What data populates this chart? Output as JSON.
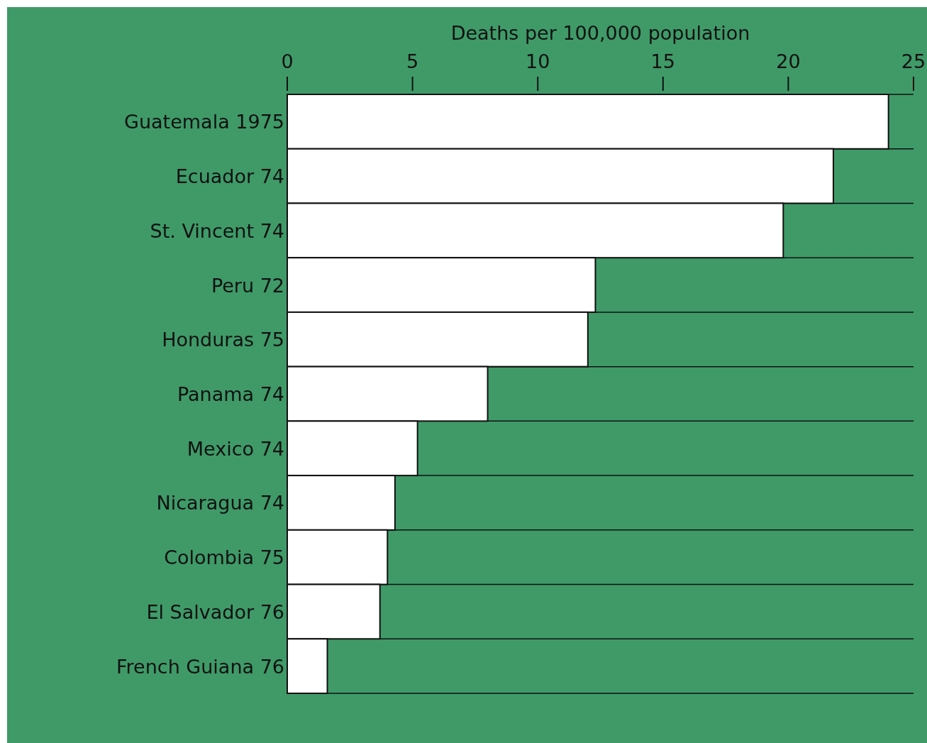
{
  "chart_data": {
    "type": "bar",
    "orientation": "horizontal",
    "xlabel": "Deaths per 100,000 population",
    "categories": [
      "Guatemala 1975",
      "Ecuador 74",
      "St. Vincent 74",
      "Peru 72",
      "Honduras 75",
      "Panama 74",
      "Mexico 74",
      "Nicaragua 74",
      "Colombia 75",
      "El Salvador 76",
      "French Guiana 76"
    ],
    "values": [
      24.0,
      21.8,
      19.8,
      12.3,
      12.0,
      8.0,
      5.2,
      4.3,
      4.0,
      3.7,
      1.6
    ],
    "color": "#ffffff",
    "xlim": [
      0,
      25
    ],
    "xticks": [
      0,
      5,
      10,
      15,
      20,
      25
    ],
    "grid": false
  }
}
